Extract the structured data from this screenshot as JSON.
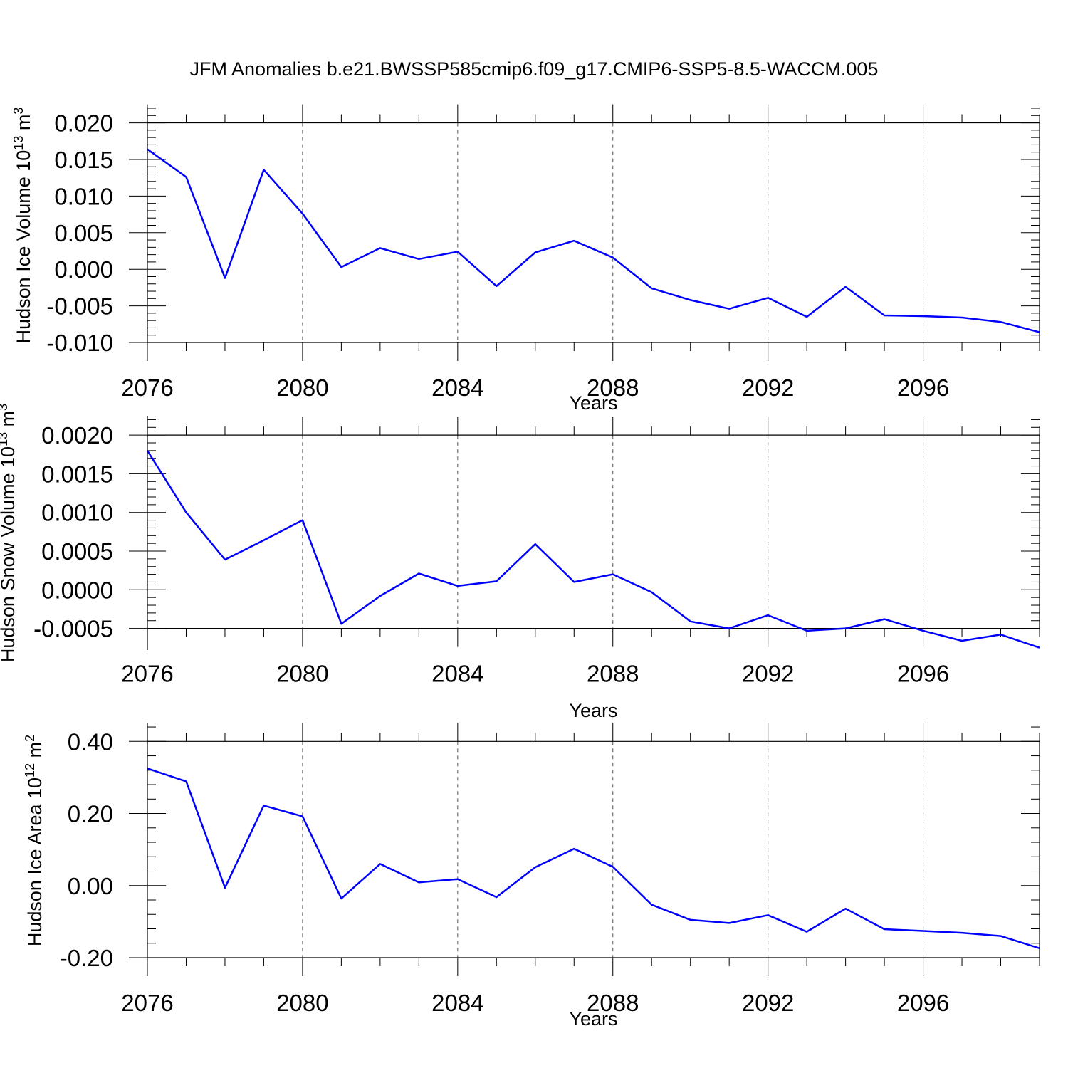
{
  "title": "JFM Anomalies b.e21.BWSSP585cmip6.f09_g17.CMIP6-SSP5-8.5-WACCM.005",
  "colors": {
    "line": "#0000ff",
    "axis": "#000000",
    "grid": "#555555",
    "background": "#ffffff"
  },
  "chart_data": [
    {
      "type": "line",
      "title": "",
      "xlabel": "Years",
      "ylabel": {
        "text": "Hudson Ice Volume 10",
        "exponent": "13",
        "unit": " m",
        "unit_exponent": "3"
      },
      "xlim": [
        2076,
        2099
      ],
      "ylim": [
        -0.01,
        0.022
      ],
      "xticks": [
        2076,
        2080,
        2084,
        2088,
        2092,
        2096
      ],
      "xtick_labels": [
        "2076",
        "2080",
        "2084",
        "2088",
        "2092",
        "2096"
      ],
      "yticks": [
        -0.01,
        -0.005,
        0.0,
        0.005,
        0.01,
        0.015,
        0.02
      ],
      "ytick_labels": [
        "-0.010",
        "-0.005",
        "0.000",
        "0.005",
        "0.010",
        "0.015",
        "0.020"
      ],
      "grid": "x-dashed",
      "series": [
        {
          "name": "Hudson Ice Volume",
          "x": [
            2076,
            2077,
            2078,
            2079,
            2080,
            2081,
            2082,
            2083,
            2084,
            2085,
            2086,
            2087,
            2088,
            2089,
            2090,
            2091,
            2092,
            2093,
            2094,
            2095,
            2096,
            2097,
            2098,
            2099
          ],
          "values": [
            0.0164,
            0.0126,
            -0.0012,
            0.0136,
            0.0076,
            0.0003,
            0.0029,
            0.0014,
            0.0024,
            -0.0023,
            0.0023,
            0.0039,
            0.0016,
            -0.0026,
            -0.0042,
            -0.0054,
            -0.0039,
            -0.0065,
            -0.0024,
            -0.0063,
            -0.0064,
            -0.0066,
            -0.0072,
            -0.0086
          ]
        }
      ]
    },
    {
      "type": "line",
      "title": "",
      "xlabel": "Years",
      "ylabel": {
        "text": "Hudson Snow Volume 10",
        "exponent": "13",
        "unit": " m",
        "unit_exponent": "3"
      },
      "xlim": [
        2076,
        2099
      ],
      "ylim": [
        -0.00078,
        0.00225
      ],
      "xticks": [
        2076,
        2080,
        2084,
        2088,
        2092,
        2096
      ],
      "xtick_labels": [
        "2076",
        "2080",
        "2084",
        "2088",
        "2092",
        "2096"
      ],
      "yticks": [
        -0.0005,
        0.0,
        0.0005,
        0.001,
        0.0015,
        0.002
      ],
      "ytick_labels": [
        "-0.0005",
        "0.0000",
        "0.0005",
        "0.0010",
        "0.0015",
        "0.0020"
      ],
      "grid": "x-dashed",
      "series": [
        {
          "name": "Hudson Snow Volume",
          "x": [
            2076,
            2077,
            2078,
            2079,
            2080,
            2081,
            2082,
            2083,
            2084,
            2085,
            2086,
            2087,
            2088,
            2089,
            2090,
            2091,
            2092,
            2093,
            2094,
            2095,
            2096,
            2097,
            2098,
            2099
          ],
          "values": [
            0.0018,
            0.001,
            0.00039,
            0.00064,
            0.0009,
            -0.00044,
            -8e-05,
            0.00021,
            5e-05,
            0.00011,
            0.00059,
            0.0001,
            0.0002,
            -3e-05,
            -0.00041,
            -0.0005,
            -0.00033,
            -0.00053,
            -0.0005,
            -0.00038,
            -0.00053,
            -0.00066,
            -0.00058,
            -0.00075
          ]
        }
      ]
    },
    {
      "type": "line",
      "title": "",
      "xlabel": "Years",
      "ylabel": {
        "text": "Hudson Ice Area 10",
        "exponent": "12",
        "unit": " m",
        "unit_exponent": "2"
      },
      "xlim": [
        2076,
        2099
      ],
      "ylim": [
        -0.2,
        0.45
      ],
      "xticks": [
        2076,
        2080,
        2084,
        2088,
        2092,
        2096
      ],
      "xtick_labels": [
        "2076",
        "2080",
        "2084",
        "2088",
        "2092",
        "2096"
      ],
      "yticks": [
        -0.2,
        0.0,
        0.2,
        0.4
      ],
      "ytick_labels": [
        "-0.20",
        "0.00",
        "0.20",
        "0.40"
      ],
      "grid": "x-dashed",
      "series": [
        {
          "name": "Hudson Ice Area",
          "x": [
            2076,
            2077,
            2078,
            2079,
            2080,
            2081,
            2082,
            2083,
            2084,
            2085,
            2086,
            2087,
            2088,
            2089,
            2090,
            2091,
            2092,
            2093,
            2094,
            2095,
            2096,
            2097,
            2098,
            2099
          ],
          "values": [
            0.325,
            0.289,
            -0.006,
            0.222,
            0.192,
            -0.036,
            0.06,
            0.009,
            0.018,
            -0.032,
            0.051,
            0.102,
            0.052,
            -0.053,
            -0.095,
            -0.104,
            -0.082,
            -0.128,
            -0.064,
            -0.121,
            -0.126,
            -0.131,
            -0.14,
            -0.174
          ]
        }
      ]
    }
  ]
}
